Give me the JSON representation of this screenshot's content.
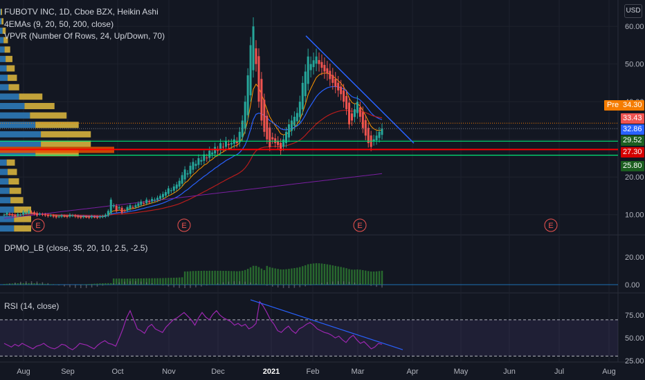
{
  "title": "FUBOTV INC, 1D, Cboe BZX, Heikin Ashi",
  "indicators": {
    "emas": "4EMAs (9, 20, 50, 200, close)",
    "vpvr": "VPVR (Number Of Rows, 24, Up/Down, 70)",
    "dpmo": "DPMO_LB (close, 35, 20, 10, 2.5, -2.5)",
    "rsi": "RSI (14, close)"
  },
  "currency": "USD",
  "earnings_marker": "E",
  "pre_label": "Pre",
  "price_labels": [
    {
      "value": "34.30",
      "color": "#f57c00"
    },
    {
      "value": "33.43",
      "color": "#ef5350"
    },
    {
      "value": "32.86",
      "color": "#2962ff"
    },
    {
      "value": "29.52",
      "color": "#1b5e20"
    },
    {
      "value": "27.30",
      "color": "#d50000"
    },
    {
      "value": "25.80",
      "color": "#1b5e20"
    }
  ],
  "colors": {
    "background": "#131722",
    "up": "#26a69a",
    "down": "#ef5350",
    "ema9": "#ff9800",
    "ema20": "#2962ff",
    "ema50": "#b71c1c",
    "ema200": "#7b1fa2",
    "trendline": "#2962ff",
    "hline_green": "#00e676",
    "hline_red": "#ff0000",
    "rsi": "#9c27b0"
  },
  "chart_data": [
    {
      "type": "candlestick",
      "title": "FUBOTV INC, 1D, Cboe BZX, Heikin Ashi",
      "x": [
        "Aug",
        "Sep",
        "Oct",
        "Nov",
        "Dec",
        "2021",
        "Feb",
        "Mar",
        "Apr",
        "May",
        "Jun",
        "Jul",
        "Aug"
      ],
      "y_ticks": [
        "10.00",
        "20.00",
        "30.00",
        "40.00",
        "50.00",
        "60.00"
      ],
      "ylim": [
        5,
        67
      ],
      "close_series": [
        10,
        10.5,
        10,
        9.8,
        9.5,
        10.2,
        10,
        10.8,
        10.5,
        11,
        10.6,
        10.2,
        9.8,
        10.2,
        10,
        9.8,
        9.6,
        9.8,
        9.5,
        9.3,
        9.5,
        9.8,
        9.6,
        9.4,
        10,
        9.8,
        9.5,
        9.3,
        9.2,
        9.5,
        9.4,
        9.2,
        9.6,
        9.4,
        9.2,
        9.5,
        9.6,
        10,
        11,
        14,
        12.5,
        11,
        12,
        10.5,
        11,
        12,
        12.5,
        12,
        12.5,
        13,
        13.5,
        13,
        14,
        13.5,
        14.2,
        14,
        14.5,
        15,
        15.5,
        16,
        17,
        16.5,
        17.5,
        18,
        19,
        20.5,
        22,
        21,
        23,
        24,
        23.5,
        25,
        24.5,
        26,
        25,
        27,
        26.5,
        28,
        27,
        29,
        28,
        29.5,
        28.5,
        29,
        30,
        29,
        32,
        35,
        40,
        47,
        55,
        60,
        50,
        40,
        35,
        32,
        30,
        28,
        30,
        29,
        28.5,
        27,
        30,
        32,
        34,
        35,
        36,
        37,
        40,
        45,
        48,
        52,
        50,
        51,
        52,
        50,
        49,
        48,
        47.5,
        46,
        45,
        44,
        43,
        42,
        40,
        38,
        34,
        35,
        38,
        40,
        36,
        33,
        31,
        29,
        28,
        30,
        31,
        32,
        32.9
      ],
      "price_lines": {
        "pre": 34.3,
        "ema9": 33.43,
        "last": 32.86,
        "support_high": 29.52,
        "support_mid": 27.3,
        "support_low": 25.8
      },
      "earnings_dates": [
        "Aug",
        "Nov",
        "Mar",
        "Jun"
      ]
    },
    {
      "type": "area",
      "title": "DPMO_LB (close, 35, 20, 10, 2.5, -2.5)",
      "y_ticks": [
        "0.00",
        "20.00"
      ],
      "ylim": [
        -5,
        35
      ]
    },
    {
      "type": "line",
      "title": "RSI (14, close)",
      "y_ticks": [
        "25.00",
        "50.00",
        "75.00"
      ],
      "ylim": [
        25,
        98
      ],
      "bands": [
        30,
        70
      ],
      "values": [
        44,
        42,
        40,
        43,
        41,
        44,
        42,
        40,
        38,
        41,
        42,
        44,
        41,
        39,
        38,
        40,
        43,
        42,
        39,
        37,
        40,
        44,
        43,
        42,
        40,
        38,
        42,
        45,
        47,
        44,
        43,
        41,
        50,
        60,
        72,
        80,
        70,
        60,
        58,
        55,
        62,
        65,
        60,
        58,
        56,
        62,
        66,
        70,
        72,
        75,
        78,
        74,
        70,
        64,
        72,
        78,
        73,
        70,
        76,
        80,
        75,
        72,
        70,
        68,
        64,
        66,
        63,
        65,
        60,
        62,
        66,
        90,
        85,
        78,
        70,
        65,
        58,
        56,
        60,
        63,
        58,
        55,
        60,
        62,
        65,
        67,
        64,
        60,
        58,
        56,
        55,
        53,
        50,
        52,
        48,
        45,
        50,
        53,
        48,
        44,
        46,
        42,
        38,
        40,
        44,
        43
      ]
    }
  ]
}
